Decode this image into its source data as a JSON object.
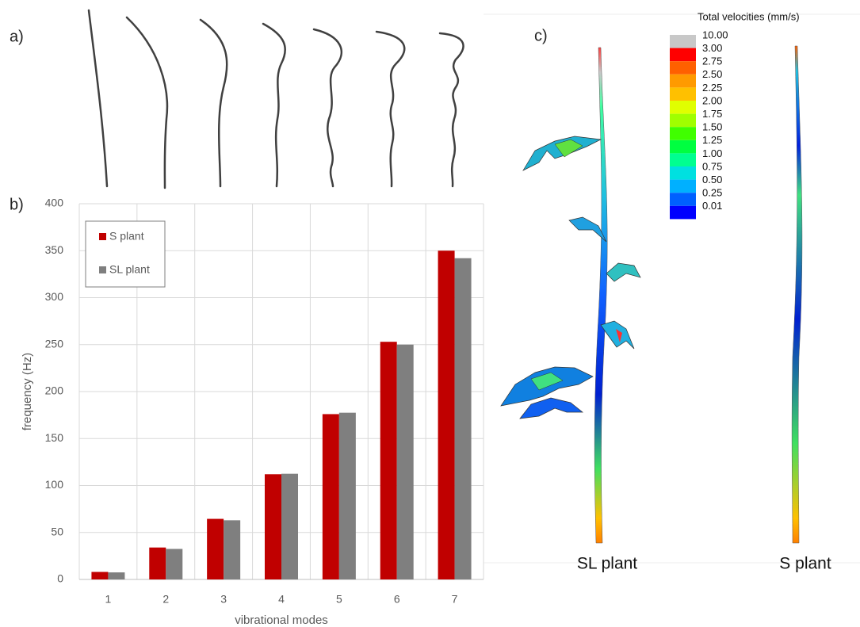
{
  "panel_labels": [
    "a)",
    "b)",
    "c)"
  ],
  "chart_data": {
    "type": "bar",
    "x_label": "vibrational modes",
    "y_label": "frequency (Hz)",
    "categories": [
      "1",
      "2",
      "3",
      "4",
      "5",
      "6",
      "7"
    ],
    "series": [
      {
        "name": "S plant",
        "color": "#c00000",
        "values": [
          8,
          34,
          64.5,
          112,
          176,
          253,
          350
        ]
      },
      {
        "name": "SL plant",
        "color": "#7f7f7f",
        "values": [
          7.5,
          32.5,
          63,
          112.5,
          177.5,
          250,
          342
        ]
      }
    ],
    "ylim": [
      0,
      400
    ],
    "yticks": [
      0,
      50,
      100,
      150,
      200,
      250,
      300,
      350,
      400
    ],
    "grid": true,
    "legend": "upper left"
  },
  "colorbar": {
    "title": "Total velocities (mm/s)",
    "labels": [
      "10.00",
      "3.00",
      "2.75",
      "2.50",
      "2.25",
      "2.00",
      "1.75",
      "1.50",
      "1.25",
      "1.00",
      "0.75",
      "0.50",
      "0.25",
      "0.01"
    ],
    "colors": [
      "#c8c8c8",
      "#ff0000",
      "#ff6000",
      "#ff9a00",
      "#ffc000",
      "#e0ff00",
      "#a0ff00",
      "#40ff00",
      "#00ff40",
      "#00ff90",
      "#00e0e0",
      "#00b0ff",
      "#0060ff",
      "#0000ff"
    ]
  },
  "plant_labels": [
    "SL plant",
    "S plant"
  ]
}
